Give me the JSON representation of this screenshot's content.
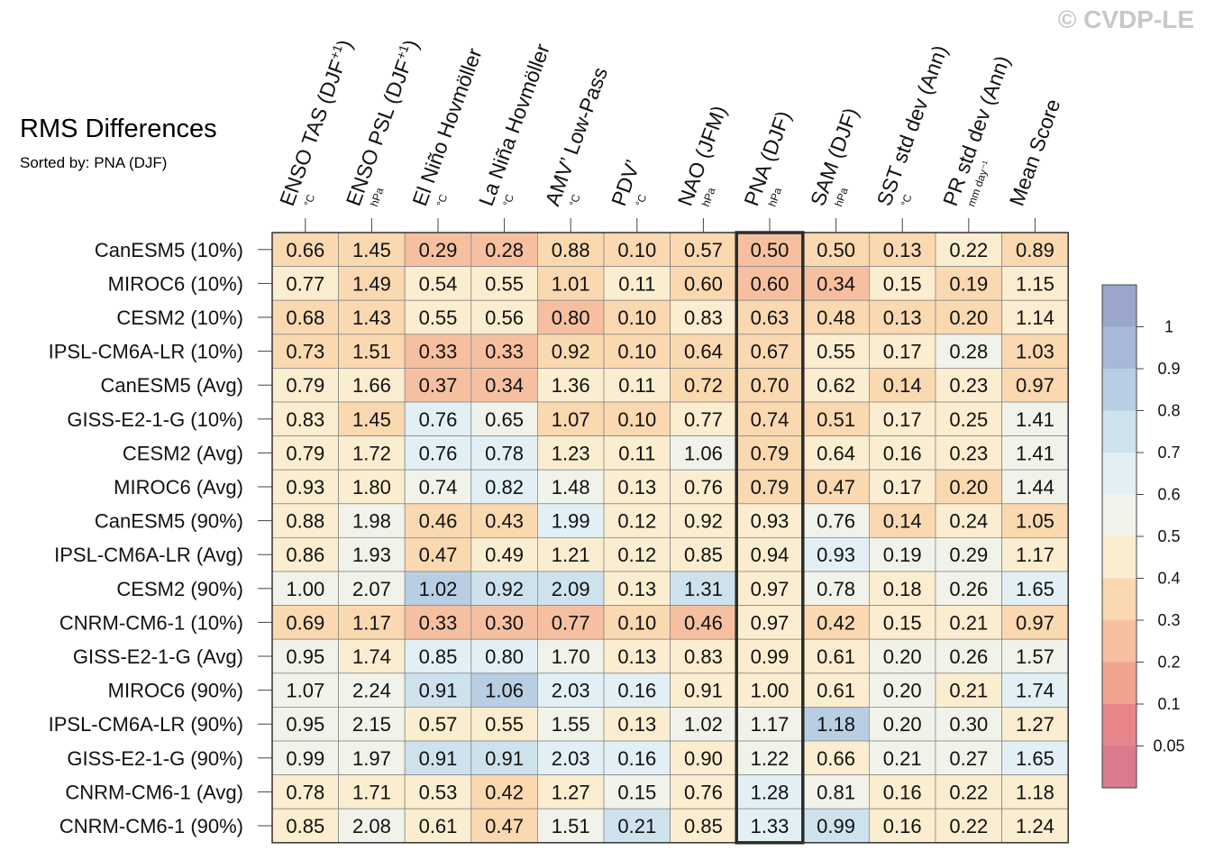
{
  "title": "RMS Differences",
  "subtitle": "Sorted by: PNA (DJF)",
  "watermark": "© CVDP-LE",
  "chart_data": {
    "type": "heatmap",
    "highlight_column": 7,
    "columns": [
      {
        "label": "ENSO TAS (DJF",
        "sup": "+1",
        "label_end": ")",
        "unit": "°C"
      },
      {
        "label": "ENSO PSL (DJF",
        "sup": "+1",
        "label_end": ")",
        "unit": "hPa"
      },
      {
        "label": "El Niño Hovmöller",
        "sup": "",
        "label_end": "",
        "unit": "°C"
      },
      {
        "label": "La Niña Hovmöller",
        "sup": "",
        "label_end": "",
        "unit": "°C"
      },
      {
        "label": "AMV’ Low-Pass",
        "sup": "",
        "label_end": "",
        "unit": "°C"
      },
      {
        "label": "PDV’",
        "sup": "",
        "label_end": "",
        "unit": "°C"
      },
      {
        "label": "NAO (JFM)",
        "sup": "",
        "label_end": "",
        "unit": "hPa"
      },
      {
        "label": "PNA (DJF)",
        "sup": "",
        "label_end": "",
        "unit": "hPa"
      },
      {
        "label": "SAM (DJF)",
        "sup": "",
        "label_end": "",
        "unit": "hPa"
      },
      {
        "label": "SST std dev (Ann)",
        "sup": "",
        "label_end": "",
        "unit": "°C"
      },
      {
        "label": "PR std dev (Ann)",
        "sup": "",
        "label_end": "",
        "unit": "mm day⁻¹"
      },
      {
        "label": "Mean Score",
        "sup": "",
        "label_end": "",
        "unit": ""
      }
    ],
    "rows": [
      {
        "name": "CanESM5 (10%)",
        "values": [
          0.66,
          1.45,
          0.29,
          0.28,
          0.88,
          0.1,
          0.57,
          0.5,
          0.5,
          0.13,
          0.22,
          0.89
        ]
      },
      {
        "name": "MIROC6 (10%)",
        "values": [
          0.77,
          1.49,
          0.54,
          0.55,
          1.01,
          0.11,
          0.6,
          0.6,
          0.34,
          0.15,
          0.19,
          1.15
        ]
      },
      {
        "name": "CESM2 (10%)",
        "values": [
          0.68,
          1.43,
          0.55,
          0.56,
          0.8,
          0.1,
          0.83,
          0.63,
          0.48,
          0.13,
          0.2,
          1.14
        ]
      },
      {
        "name": "IPSL-CM6A-LR (10%)",
        "values": [
          0.73,
          1.51,
          0.33,
          0.33,
          0.92,
          0.1,
          0.64,
          0.67,
          0.55,
          0.17,
          0.28,
          1.03
        ]
      },
      {
        "name": "CanESM5 (Avg)",
        "values": [
          0.79,
          1.66,
          0.37,
          0.34,
          1.36,
          0.11,
          0.72,
          0.7,
          0.62,
          0.14,
          0.23,
          0.97
        ]
      },
      {
        "name": "GISS-E2-1-G (10%)",
        "values": [
          0.83,
          1.45,
          0.76,
          0.65,
          1.07,
          0.1,
          0.77,
          0.74,
          0.51,
          0.17,
          0.25,
          1.41
        ]
      },
      {
        "name": "CESM2 (Avg)",
        "values": [
          0.79,
          1.72,
          0.76,
          0.78,
          1.23,
          0.11,
          1.06,
          0.79,
          0.64,
          0.16,
          0.23,
          1.41
        ]
      },
      {
        "name": "MIROC6 (Avg)",
        "values": [
          0.93,
          1.8,
          0.74,
          0.82,
          1.48,
          0.13,
          0.76,
          0.79,
          0.47,
          0.17,
          0.2,
          1.44
        ]
      },
      {
        "name": "CanESM5 (90%)",
        "values": [
          0.88,
          1.98,
          0.46,
          0.43,
          1.99,
          0.12,
          0.92,
          0.93,
          0.76,
          0.14,
          0.24,
          1.05
        ]
      },
      {
        "name": "IPSL-CM6A-LR (Avg)",
        "values": [
          0.86,
          1.93,
          0.47,
          0.49,
          1.21,
          0.12,
          0.85,
          0.94,
          0.93,
          0.19,
          0.29,
          1.17
        ]
      },
      {
        "name": "CESM2 (90%)",
        "values": [
          1.0,
          2.07,
          1.02,
          0.92,
          2.09,
          0.13,
          1.31,
          0.97,
          0.78,
          0.18,
          0.26,
          1.65
        ]
      },
      {
        "name": "CNRM-CM6-1 (10%)",
        "values": [
          0.69,
          1.17,
          0.33,
          0.3,
          0.77,
          0.1,
          0.46,
          0.97,
          0.42,
          0.15,
          0.21,
          0.97
        ]
      },
      {
        "name": "GISS-E2-1-G (Avg)",
        "values": [
          0.95,
          1.74,
          0.85,
          0.8,
          1.7,
          0.13,
          0.83,
          0.99,
          0.61,
          0.2,
          0.26,
          1.57
        ]
      },
      {
        "name": "MIROC6 (90%)",
        "values": [
          1.07,
          2.24,
          0.91,
          1.06,
          2.03,
          0.16,
          0.91,
          1.0,
          0.61,
          0.2,
          0.21,
          1.74
        ]
      },
      {
        "name": "IPSL-CM6A-LR (90%)",
        "values": [
          0.95,
          2.15,
          0.57,
          0.55,
          1.55,
          0.13,
          1.02,
          1.17,
          1.18,
          0.2,
          0.3,
          1.27
        ]
      },
      {
        "name": "GISS-E2-1-G (90%)",
        "values": [
          0.99,
          1.97,
          0.91,
          0.91,
          2.03,
          0.16,
          0.9,
          1.22,
          0.66,
          0.21,
          0.27,
          1.65
        ]
      },
      {
        "name": "CNRM-CM6-1 (Avg)",
        "values": [
          0.78,
          1.71,
          0.53,
          0.42,
          1.27,
          0.15,
          0.76,
          1.28,
          0.81,
          0.16,
          0.22,
          1.18
        ]
      },
      {
        "name": "CNRM-CM6-1 (90%)",
        "values": [
          0.85,
          2.08,
          0.61,
          0.47,
          1.51,
          0.21,
          0.85,
          1.33,
          0.99,
          0.16,
          0.22,
          1.24
        ]
      }
    ],
    "colorbar": {
      "labels": [
        "1",
        "0.9",
        "0.8",
        "0.7",
        "0.6",
        "0.5",
        "0.4",
        "0.3",
        "0.2",
        "0.1",
        "0.05"
      ],
      "colors": [
        "#9aa6cc",
        "#a7b8d8",
        "#b8cee2",
        "#cde2ed",
        "#e2f0f5",
        "#f1f3ea",
        "#fbedcf",
        "#fad8b0",
        "#f6c0a0",
        "#f0a490",
        "#e6868a",
        "#d97a8f"
      ]
    }
  }
}
